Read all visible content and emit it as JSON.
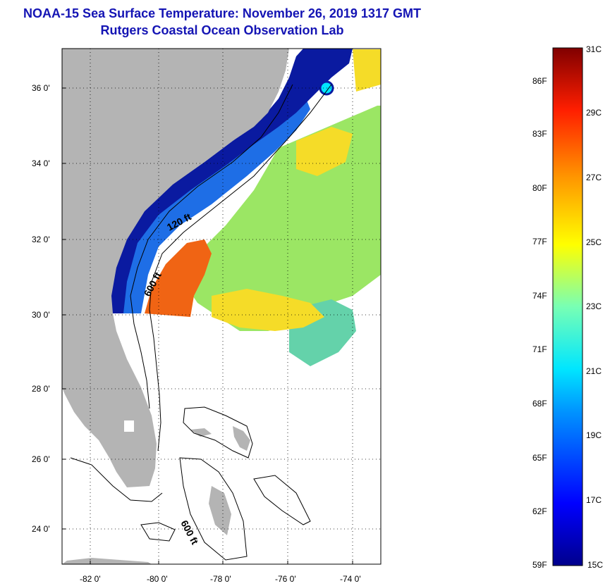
{
  "title": {
    "line1": "NOAA-15 Sea Surface Temperature:  November 26, 2019 1317 GMT",
    "line2": "Rutgers Coastal Ocean Observation Lab"
  },
  "map": {
    "lat_ticks": [
      "36 0'",
      "34 0'",
      "32 0'",
      "30 0'",
      "28 0'",
      "26 0'",
      "24 0'"
    ],
    "lon_ticks": [
      "-82 0'",
      "-80 0'",
      "-78 0'",
      "-76 0'",
      "-74 0'"
    ],
    "contour_labels": {
      "shelf_120": "120 ft",
      "shelf_600_north": "600 ft",
      "shelf_600_south": "600 ft"
    },
    "colors": {
      "land": "#b4b4b4",
      "coastal_cold": "#0a1aa0",
      "coastal_cool": "#1e6ee6",
      "gulf_stream_warm": "#f06414",
      "offshore_yellow": "#f5dc28",
      "offshore_green": "#9be664",
      "offshore_teal": "#64d2aa"
    }
  },
  "colorbar": {
    "fahrenheit_labels": [
      "86F",
      "83F",
      "80F",
      "77F",
      "74F",
      "71F",
      "68F",
      "65F",
      "62F",
      "59F"
    ],
    "celsius_labels": [
      "31C",
      "29C",
      "27C",
      "25C",
      "23C",
      "21C",
      "19C",
      "17C",
      "15C"
    ],
    "min_c": 15,
    "max_c": 31
  }
}
